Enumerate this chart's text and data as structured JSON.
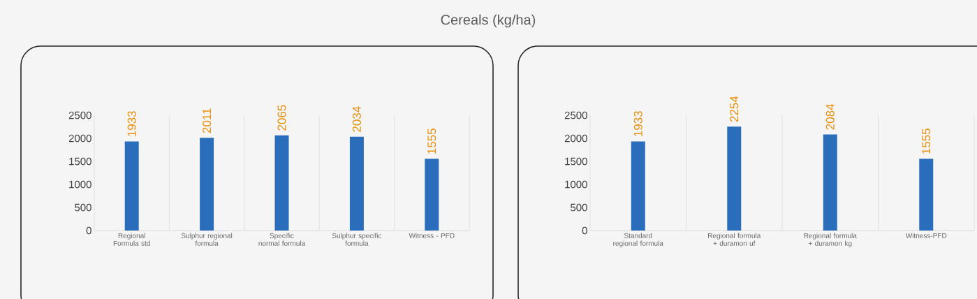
{
  "chart_data": [
    {
      "type": "bar",
      "title": "Cereals (kg/ha)",
      "categories": [
        "Regional Formula std",
        "Sulphur regional formula",
        "Specific normal formula",
        "Sulphur specific formula",
        "Witness - PFD"
      ],
      "values": [
        1933,
        2011,
        2065,
        2034,
        1555
      ],
      "color": "#2a6ebb",
      "ylim": [
        0,
        2500
      ],
      "yticks": [
        0,
        500,
        1000,
        1500,
        2000,
        2500
      ],
      "grid": "x",
      "data_labels": true
    },
    {
      "type": "bar",
      "categories": [
        "Standard regional formula",
        "Regional formula + duramon uf",
        "Regional formula + duramon kg",
        "Witness-PFD"
      ],
      "values": [
        1933,
        2254,
        2084,
        1555
      ],
      "color": "#2a6ebb",
      "ylim": [
        0,
        2500
      ],
      "yticks": [
        0,
        500,
        1000,
        1500,
        2000,
        2500
      ],
      "grid": "x",
      "data_labels": true
    }
  ]
}
